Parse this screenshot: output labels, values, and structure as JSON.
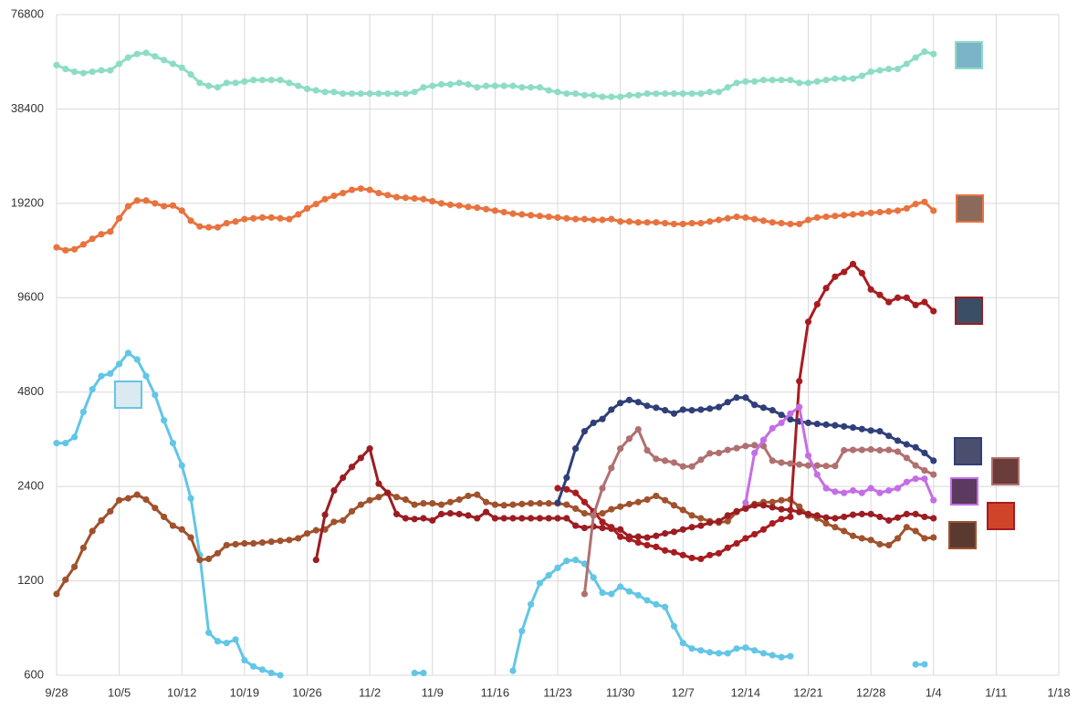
{
  "chart_data": {
    "type": "line",
    "yscale": "log",
    "grid": true,
    "ylim": [
      600,
      76800
    ],
    "yticks": [
      600,
      1200,
      2400,
      4800,
      9600,
      19200,
      38400,
      76800
    ],
    "categories": [
      "9/28",
      null,
      null,
      null,
      null,
      null,
      null,
      "10/5",
      null,
      null,
      null,
      null,
      null,
      null,
      "10/12",
      null,
      null,
      null,
      null,
      null,
      null,
      "10/19",
      null,
      null,
      null,
      null,
      null,
      null,
      "10/26",
      null,
      null,
      null,
      null,
      null,
      null,
      "11/2",
      null,
      null,
      null,
      null,
      null,
      null,
      "11/9",
      null,
      null,
      null,
      null,
      null,
      null,
      "11/16",
      null,
      null,
      null,
      null,
      null,
      null,
      "11/23",
      null,
      null,
      null,
      null,
      null,
      null,
      "11/30",
      null,
      null,
      null,
      null,
      null,
      null,
      "12/7",
      null,
      null,
      null,
      null,
      null,
      null,
      "12/14",
      null,
      null,
      null,
      null,
      null,
      null,
      "12/21",
      null,
      null,
      null,
      null,
      null,
      null,
      "12/28",
      null,
      null,
      null,
      null,
      null,
      null,
      "1/4",
      null,
      null,
      null,
      null,
      null,
      null,
      "1/11",
      null,
      null,
      null,
      null,
      null,
      null,
      "1/18"
    ],
    "series": [
      {
        "color": "#8ddcc6",
        "values": [
          53000,
          51500,
          50500,
          50000,
          50500,
          51000,
          51000,
          53500,
          56000,
          57500,
          58000,
          56500,
          55000,
          53500,
          52000,
          49500,
          46500,
          45500,
          45000,
          46500,
          46500,
          47000,
          47500,
          47500,
          47500,
          47500,
          46500,
          45500,
          44500,
          44000,
          43500,
          43500,
          43000,
          43000,
          43000,
          43000,
          43000,
          43000,
          43000,
          43000,
          43500,
          45000,
          45500,
          46000,
          46000,
          46500,
          46000,
          45000,
          45500,
          45500,
          45500,
          45500,
          45000,
          45000,
          45000,
          44000,
          43500,
          43000,
          43000,
          42500,
          42500,
          42000,
          42000,
          42000,
          42500,
          42500,
          43000,
          43000,
          43000,
          43000,
          43000,
          43000,
          43000,
          43500,
          43500,
          45000,
          46500,
          47000,
          47000,
          47500,
          47500,
          47500,
          47500,
          46500,
          46500,
          47000,
          47500,
          48000,
          48000,
          48000,
          49000,
          50500,
          51000,
          51500,
          51500,
          53500,
          56000,
          58500,
          57500,
          null,
          null,
          null,
          null,
          null,
          null,
          null,
          null,
          null,
          null,
          null,
          null,
          null,
          null
        ]
      },
      {
        "color": "#e8733e",
        "values": [
          13900,
          13600,
          13700,
          14200,
          14800,
          15300,
          15600,
          17200,
          18800,
          19600,
          19600,
          19200,
          18800,
          18900,
          18200,
          16900,
          16200,
          16100,
          16100,
          16600,
          16800,
          17100,
          17200,
          17300,
          17300,
          17200,
          17100,
          17700,
          18500,
          19100,
          19800,
          20300,
          20700,
          21200,
          21400,
          21200,
          20700,
          20400,
          20100,
          20000,
          19900,
          19800,
          19500,
          19200,
          19000,
          18900,
          18700,
          18600,
          18400,
          18200,
          18000,
          17800,
          17700,
          17600,
          17500,
          17400,
          17300,
          17200,
          17100,
          17100,
          17000,
          17000,
          17100,
          16800,
          16800,
          16700,
          16700,
          16700,
          16600,
          16500,
          16500,
          16600,
          16600,
          16800,
          17000,
          17200,
          17400,
          17300,
          17100,
          16900,
          16700,
          16600,
          16500,
          16500,
          17000,
          17300,
          17400,
          17500,
          17600,
          17700,
          17800,
          17900,
          18000,
          18100,
          18200,
          18500,
          19100,
          19400,
          18200,
          null,
          null,
          null,
          null,
          null,
          null,
          null,
          null,
          null,
          null,
          null,
          null,
          null,
          null
        ]
      },
      {
        "color": "#62c6e6",
        "values": [
          3300,
          3300,
          3450,
          4150,
          4900,
          5400,
          5500,
          5900,
          6400,
          6100,
          5400,
          4700,
          3900,
          3300,
          2800,
          2200,
          1450,
          820,
          770,
          760,
          780,
          670,
          640,
          625,
          610,
          600,
          null,
          null,
          null,
          null,
          null,
          null,
          null,
          null,
          null,
          null,
          null,
          null,
          null,
          null,
          610,
          610,
          null,
          null,
          null,
          null,
          null,
          null,
          null,
          null,
          null,
          620,
          830,
          1010,
          1180,
          1250,
          1320,
          1390,
          1400,
          1360,
          1230,
          1100,
          1090,
          1150,
          1110,
          1080,
          1040,
          1010,
          990,
          860,
          760,
          730,
          720,
          710,
          705,
          705,
          730,
          735,
          720,
          705,
          695,
          685,
          690,
          null,
          null,
          null,
          null,
          null,
          null,
          null,
          null,
          null,
          null,
          null,
          null,
          null,
          650,
          650,
          null,
          null,
          null,
          null,
          null,
          null,
          null,
          null,
          null,
          null,
          null,
          null,
          null,
          null,
          null
        ]
      },
      {
        "color": "#a0522d",
        "values": [
          1090,
          1210,
          1330,
          1530,
          1730,
          1870,
          2000,
          2170,
          2200,
          2260,
          2180,
          2050,
          1920,
          1800,
          1750,
          1650,
          1400,
          1410,
          1470,
          1560,
          1570,
          1580,
          1580,
          1590,
          1600,
          1610,
          1620,
          1640,
          1700,
          1740,
          1750,
          1850,
          1870,
          2000,
          2100,
          2170,
          2220,
          2290,
          2220,
          2180,
          2100,
          2120,
          2120,
          2100,
          2140,
          2180,
          2240,
          2260,
          2140,
          2100,
          2090,
          2100,
          2110,
          2120,
          2120,
          2120,
          2120,
          2100,
          2040,
          1970,
          1950,
          1970,
          2030,
          2070,
          2110,
          2140,
          2180,
          2240,
          2170,
          2090,
          2020,
          1940,
          1900,
          1860,
          1840,
          1860,
          1990,
          2060,
          2110,
          2140,
          2140,
          2170,
          2180,
          2070,
          1940,
          1900,
          1830,
          1780,
          1730,
          1670,
          1640,
          1620,
          1570,
          1560,
          1640,
          1780,
          1730,
          1640,
          1650,
          null,
          null,
          null,
          null,
          null,
          null,
          null,
          null,
          null,
          null,
          null,
          null,
          null,
          null
        ]
      },
      {
        "color": "#9b1d22",
        "values": [
          null,
          null,
          null,
          null,
          null,
          null,
          null,
          null,
          null,
          null,
          null,
          null,
          null,
          null,
          null,
          null,
          null,
          null,
          null,
          null,
          null,
          null,
          null,
          null,
          null,
          null,
          null,
          null,
          null,
          1400,
          1950,
          2330,
          2560,
          2770,
          2960,
          3170,
          2450,
          2290,
          1960,
          1900,
          1890,
          1900,
          1870,
          1960,
          1970,
          1960,
          1940,
          1900,
          1990,
          1900,
          1900,
          1900,
          1900,
          1900,
          1900,
          1900,
          1900,
          1900,
          1800,
          1770,
          1790,
          1770,
          1760,
          1750,
          1660,
          1660,
          1650,
          1670,
          1700,
          1720,
          1750,
          1780,
          1800,
          1840,
          1860,
          1940,
          2000,
          2040,
          2090,
          2090,
          2060,
          2030,
          2020,
          1990,
          1960,
          1940,
          1910,
          1900,
          1920,
          1950,
          1960,
          1960,
          1920,
          1870,
          1910,
          1960,
          1960,
          1920,
          1900,
          null,
          null,
          null,
          null,
          null,
          null,
          null,
          null,
          null,
          null,
          null,
          null,
          null,
          null
        ]
      },
      {
        "color": "#a81c20",
        "values": [
          null,
          null,
          null,
          null,
          null,
          null,
          null,
          null,
          null,
          null,
          null,
          null,
          null,
          null,
          null,
          null,
          null,
          null,
          null,
          null,
          null,
          null,
          null,
          null,
          null,
          null,
          null,
          null,
          null,
          null,
          null,
          null,
          null,
          null,
          null,
          null,
          null,
          null,
          null,
          null,
          null,
          null,
          null,
          null,
          null,
          null,
          null,
          null,
          null,
          null,
          null,
          null,
          null,
          null,
          null,
          null,
          2370,
          2350,
          2290,
          2140,
          2000,
          1850,
          1780,
          1660,
          1630,
          1590,
          1560,
          1540,
          1500,
          1480,
          1450,
          1420,
          1410,
          1450,
          1470,
          1530,
          1580,
          1640,
          1690,
          1750,
          1830,
          1890,
          1920,
          5200,
          8040,
          9150,
          10300,
          11200,
          11600,
          12300,
          11500,
          10200,
          9800,
          9300,
          9600,
          9600,
          9100,
          9300,
          8700,
          null,
          null,
          null,
          null,
          null,
          null,
          null,
          null,
          null,
          null,
          null,
          null,
          null,
          null
        ]
      },
      {
        "color": "#2f3f78",
        "values": [
          null,
          null,
          null,
          null,
          null,
          null,
          null,
          null,
          null,
          null,
          null,
          null,
          null,
          null,
          null,
          null,
          null,
          null,
          null,
          null,
          null,
          null,
          null,
          null,
          null,
          null,
          null,
          null,
          null,
          null,
          null,
          null,
          null,
          null,
          null,
          null,
          null,
          null,
          null,
          null,
          null,
          null,
          null,
          null,
          null,
          null,
          null,
          null,
          null,
          null,
          null,
          null,
          null,
          null,
          null,
          null,
          2130,
          2560,
          3170,
          3600,
          3830,
          3940,
          4220,
          4430,
          4530,
          4460,
          4340,
          4280,
          4200,
          4100,
          4220,
          4200,
          4220,
          4250,
          4300,
          4460,
          4610,
          4610,
          4370,
          4280,
          4200,
          4060,
          3930,
          3870,
          3830,
          3800,
          3780,
          3760,
          3730,
          3700,
          3660,
          3620,
          3600,
          3480,
          3360,
          3270,
          3200,
          3070,
          2900,
          null,
          null,
          null,
          null,
          null,
          null,
          null,
          null,
          null,
          null,
          null,
          null,
          null,
          null
        ]
      },
      {
        "color": "#b07070",
        "values": [
          null,
          null,
          null,
          null,
          null,
          null,
          null,
          null,
          null,
          null,
          null,
          null,
          null,
          null,
          null,
          null,
          null,
          null,
          null,
          null,
          null,
          null,
          null,
          null,
          null,
          null,
          null,
          null,
          null,
          null,
          null,
          null,
          null,
          null,
          null,
          null,
          null,
          null,
          null,
          null,
          null,
          null,
          null,
          null,
          null,
          null,
          null,
          null,
          null,
          null,
          null,
          null,
          null,
          null,
          null,
          null,
          null,
          null,
          null,
          1090,
          1940,
          2370,
          2750,
          3170,
          3410,
          3650,
          3130,
          2940,
          2900,
          2860,
          2780,
          2780,
          2920,
          3060,
          3070,
          3140,
          3180,
          3230,
          3250,
          3230,
          2900,
          2860,
          2840,
          2820,
          2800,
          2800,
          2790,
          2790,
          3130,
          3140,
          3140,
          3150,
          3130,
          3140,
          3100,
          2960,
          2800,
          2700,
          2620,
          null,
          null,
          null,
          null,
          null,
          null,
          null,
          null,
          null,
          null,
          null,
          null,
          null,
          null
        ]
      },
      {
        "color": "#c46ee6",
        "values": [
          null,
          null,
          null,
          null,
          null,
          null,
          null,
          null,
          null,
          null,
          null,
          null,
          null,
          null,
          null,
          null,
          null,
          null,
          null,
          null,
          null,
          null,
          null,
          null,
          null,
          null,
          null,
          null,
          null,
          null,
          null,
          null,
          null,
          null,
          null,
          null,
          null,
          null,
          null,
          null,
          null,
          null,
          null,
          null,
          null,
          null,
          null,
          null,
          null,
          null,
          null,
          null,
          null,
          null,
          null,
          null,
          null,
          null,
          null,
          null,
          null,
          null,
          null,
          null,
          null,
          null,
          null,
          null,
          null,
          null,
          null,
          null,
          null,
          null,
          null,
          null,
          null,
          2130,
          3070,
          3380,
          3680,
          3830,
          4100,
          4300,
          3010,
          2620,
          2370,
          2310,
          2290,
          2330,
          2290,
          2370,
          2290,
          2330,
          2370,
          2480,
          2540,
          2540,
          2170,
          null,
          null,
          null,
          null,
          null,
          null,
          null,
          null,
          null,
          null,
          null,
          null,
          null,
          null
        ]
      }
    ]
  }
}
